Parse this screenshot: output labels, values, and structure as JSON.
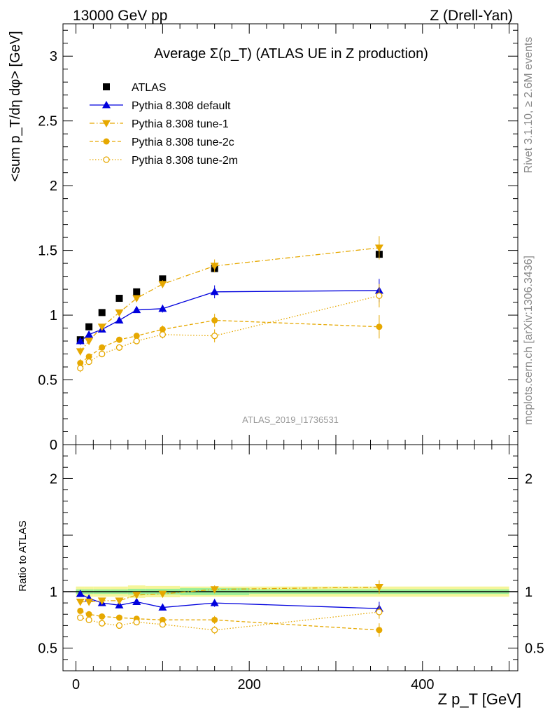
{
  "header": {
    "left": "13000 GeV pp",
    "right": "Z (Drell-Yan)"
  },
  "side_labels": {
    "rivet": "Rivet 3.1.10, ≥ 2.6M events",
    "mcplots": "mcplots.cern.ch [arXiv:1306.3436]"
  },
  "analysis_id": "ATLAS_2019_I1736531",
  "colors": {
    "atlas": "#000000",
    "default": "#0000dd",
    "tunes": "#e6a800",
    "band_inner": "#98ee98",
    "band_outer": "#f5f59a"
  },
  "chart_data": [
    {
      "type": "line",
      "title": "Average Σ(p_T) (ATLAS UE in Z production)",
      "xlabel": "Z p_T [GeV]",
      "ylabel": "<sum p_T/dη dφ> [GeV]",
      "xlim": [
        -15,
        510
      ],
      "ylim": [
        0,
        3.25
      ],
      "yticks": [
        0,
        0.5,
        1,
        1.5,
        2,
        2.5,
        3
      ],
      "ytick_labels": [
        "0",
        "0.5",
        "1",
        "1.5",
        "2",
        "2.5",
        "3"
      ],
      "x": [
        5,
        15,
        30,
        50,
        70,
        100,
        160,
        350
      ],
      "legend_position": "top-left",
      "series": [
        {
          "name": "ATLAS",
          "style": "marker",
          "values": [
            0.81,
            0.91,
            1.02,
            1.13,
            1.18,
            1.28,
            1.36,
            1.47
          ]
        },
        {
          "name": "Pythia 8.308 default",
          "style": "solid",
          "values": [
            0.8,
            0.85,
            0.89,
            0.96,
            1.04,
            1.05,
            1.18,
            1.19
          ]
        },
        {
          "name": "Pythia 8.308 tune-1",
          "style": "dashdot",
          "values": [
            0.72,
            0.8,
            0.91,
            1.02,
            1.13,
            1.24,
            1.38,
            1.52
          ]
        },
        {
          "name": "Pythia 8.308 tune-2c",
          "style": "dashed",
          "values": [
            0.63,
            0.68,
            0.75,
            0.81,
            0.84,
            0.89,
            0.96,
            0.91
          ]
        },
        {
          "name": "Pythia 8.308 tune-2m",
          "style": "dotted",
          "values": [
            0.59,
            0.64,
            0.7,
            0.75,
            0.8,
            0.85,
            0.84,
            1.15
          ]
        }
      ]
    },
    {
      "type": "line",
      "title": "",
      "xlabel": "Z p_T [GeV]",
      "ylabel": "Ratio to ATLAS",
      "xlim": [
        -15,
        510
      ],
      "ylim": [
        0.3,
        2.3
      ],
      "xticks": [
        0,
        200,
        400
      ],
      "xtick_labels": [
        "0",
        "200",
        "400"
      ],
      "yticks": [
        0.5,
        1,
        2
      ],
      "ytick_labels": [
        "0.5",
        "1",
        "2"
      ],
      "x": [
        5,
        15,
        30,
        50,
        70,
        100,
        160,
        350
      ],
      "reference": 1,
      "series": [
        {
          "name": "Pythia 8.308 default",
          "values": [
            0.98,
            0.94,
            0.9,
            0.88,
            0.91,
            0.86,
            0.9,
            0.85
          ]
        },
        {
          "name": "Pythia 8.308 tune-1",
          "values": [
            0.91,
            0.91,
            0.92,
            0.92,
            0.97,
            0.98,
            1.02,
            1.04
          ]
        },
        {
          "name": "Pythia 8.308 tune-2c",
          "values": [
            0.83,
            0.8,
            0.78,
            0.77,
            0.76,
            0.75,
            0.75,
            0.66
          ]
        },
        {
          "name": "Pythia 8.308 tune-2m",
          "values": [
            0.77,
            0.75,
            0.72,
            0.7,
            0.73,
            0.71,
            0.66,
            0.82
          ]
        }
      ]
    }
  ]
}
